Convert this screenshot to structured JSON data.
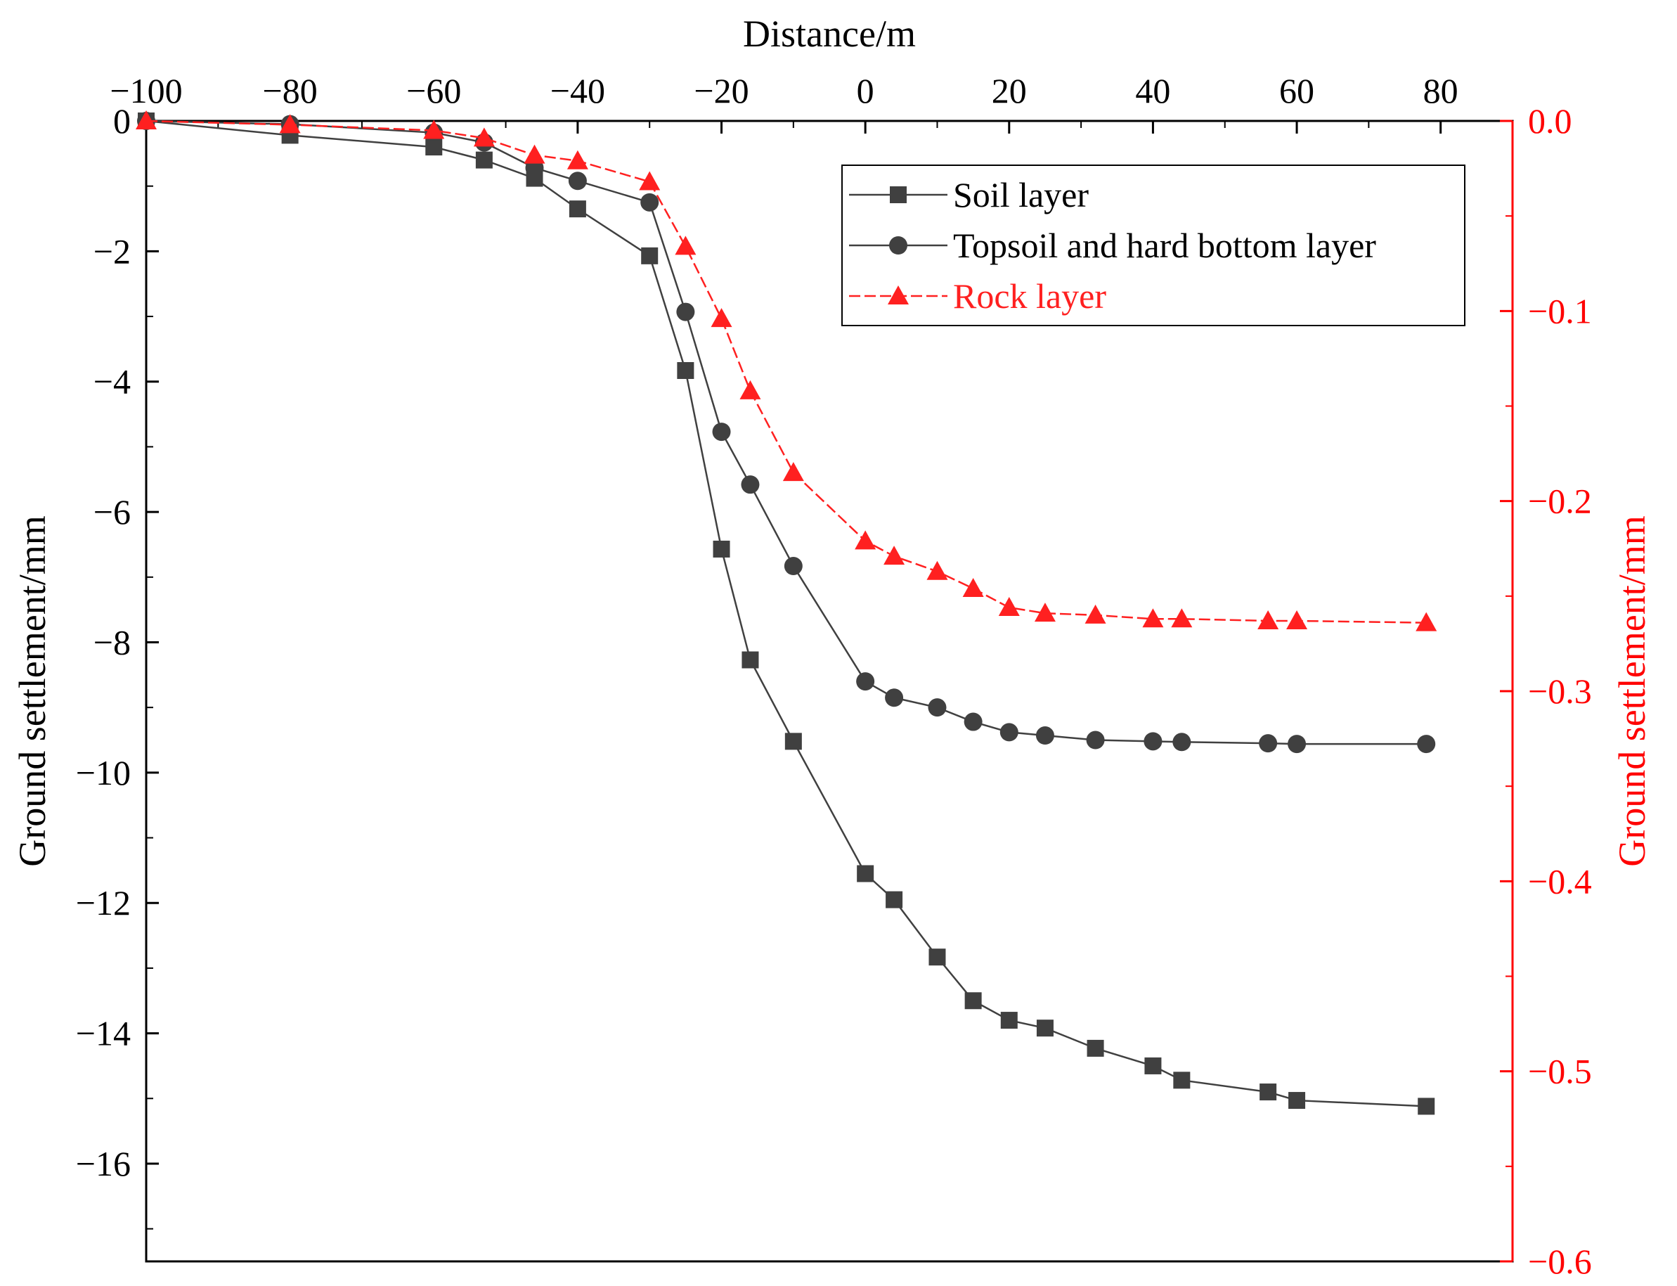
{
  "chart_data": {
    "type": "line",
    "title": "",
    "xlabel": "Distance/m",
    "ylabel_left": "Ground settlement/mm",
    "ylabel_right": "Ground settlement/mm",
    "xlim": [
      -100,
      90
    ],
    "ylim_left": [
      -17.5,
      0
    ],
    "ylim_right": [
      -0.6,
      0
    ],
    "x_ticks": [
      -100,
      -80,
      -60,
      -40,
      -20,
      0,
      20,
      40,
      60,
      80
    ],
    "x_tick_labels": [
      "−100",
      "−80",
      "−60",
      "−40",
      "−20",
      "0",
      "20",
      "40",
      "60",
      "80"
    ],
    "y_left_ticks": [
      0,
      -2,
      -4,
      -6,
      -8,
      -10,
      -12,
      -14,
      -16
    ],
    "y_left_tick_labels": [
      "0",
      "−2",
      "−4",
      "−6",
      "−8",
      "−10",
      "−12",
      "−14",
      "−16"
    ],
    "y_right_ticks": [
      0,
      -0.1,
      -0.2,
      -0.3,
      -0.4,
      -0.5,
      -0.6
    ],
    "y_right_tick_labels": [
      "0.0",
      "−0.1",
      "−0.2",
      "−0.3",
      "−0.4",
      "−0.5",
      "−0.6"
    ],
    "legend_position": "top-right",
    "colors": {
      "soil": "#404040",
      "topsoil": "#404040",
      "rock": "#ff2020",
      "right_axis": "#ff0000",
      "axis": "#000000"
    },
    "series": [
      {
        "name": "Soil layer",
        "axis": "left",
        "marker": "square",
        "x": [
          -100,
          -80,
          -60,
          -53,
          -46,
          -40,
          -30,
          -25,
          -20,
          -16,
          -10,
          0,
          4,
          10,
          15,
          20,
          25,
          32,
          40,
          44,
          56,
          60,
          78
        ],
        "values": [
          0,
          -0.22,
          -0.4,
          -0.6,
          -0.88,
          -1.35,
          -2.07,
          -3.83,
          -6.57,
          -8.27,
          -9.52,
          -11.55,
          -11.95,
          -12.83,
          -13.5,
          -13.8,
          -13.92,
          -14.23,
          -14.5,
          -14.72,
          -14.9,
          -15.03,
          -15.12
        ]
      },
      {
        "name": "Topsoil and hard bottom layer",
        "axis": "left",
        "marker": "circle",
        "x": [
          -100,
          -80,
          -60,
          -53,
          -46,
          -40,
          -30,
          -25,
          -20,
          -16,
          -10,
          0,
          4,
          10,
          15,
          20,
          25,
          32,
          40,
          44,
          56,
          60,
          78
        ],
        "values": [
          0,
          -0.05,
          -0.18,
          -0.33,
          -0.72,
          -0.92,
          -1.25,
          -2.93,
          -4.77,
          -5.58,
          -6.83,
          -8.6,
          -8.85,
          -9.0,
          -9.22,
          -9.38,
          -9.43,
          -9.5,
          -9.52,
          -9.53,
          -9.55,
          -9.56,
          -9.56
        ]
      },
      {
        "name": "Rock layer",
        "axis": "right",
        "marker": "triangle",
        "dashed": true,
        "x": [
          -100,
          -80,
          -60,
          -53,
          -46,
          -40,
          -30,
          -25,
          -20,
          -16,
          -10,
          0,
          4,
          10,
          15,
          20,
          25,
          32,
          40,
          44,
          56,
          60,
          78
        ],
        "values": [
          0,
          -0.002,
          -0.005,
          -0.009,
          -0.018,
          -0.021,
          -0.032,
          -0.066,
          -0.104,
          -0.142,
          -0.185,
          -0.221,
          -0.229,
          -0.237,
          -0.246,
          -0.256,
          -0.259,
          -0.26,
          -0.262,
          -0.262,
          -0.263,
          -0.263,
          -0.264
        ]
      }
    ]
  }
}
